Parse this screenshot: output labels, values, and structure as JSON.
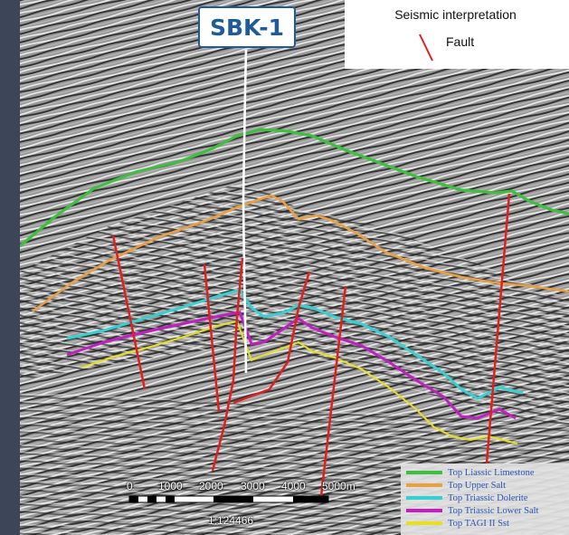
{
  "well": {
    "name": "SBK-1"
  },
  "interpretation_legend": {
    "title": "Seismic interpretation",
    "fault_label": "Fault",
    "fault_color": "#e02020"
  },
  "horizons": [
    {
      "name": "Top Liassic Limestone",
      "color": "#3fbf3f"
    },
    {
      "name": "Top Upper Salt",
      "color": "#e8a040"
    },
    {
      "name": "Top Triassic Dolerite",
      "color": "#35d0d0"
    },
    {
      "name": "Top Triassic Lower Salt",
      "color": "#c020c0"
    },
    {
      "name": "Top TAGI II Sst",
      "color": "#e6e020"
    }
  ],
  "scale": {
    "ticks": [
      "0",
      "1000",
      "2000",
      "3000",
      "4000",
      "5000m"
    ],
    "ratio": "1:124466"
  }
}
